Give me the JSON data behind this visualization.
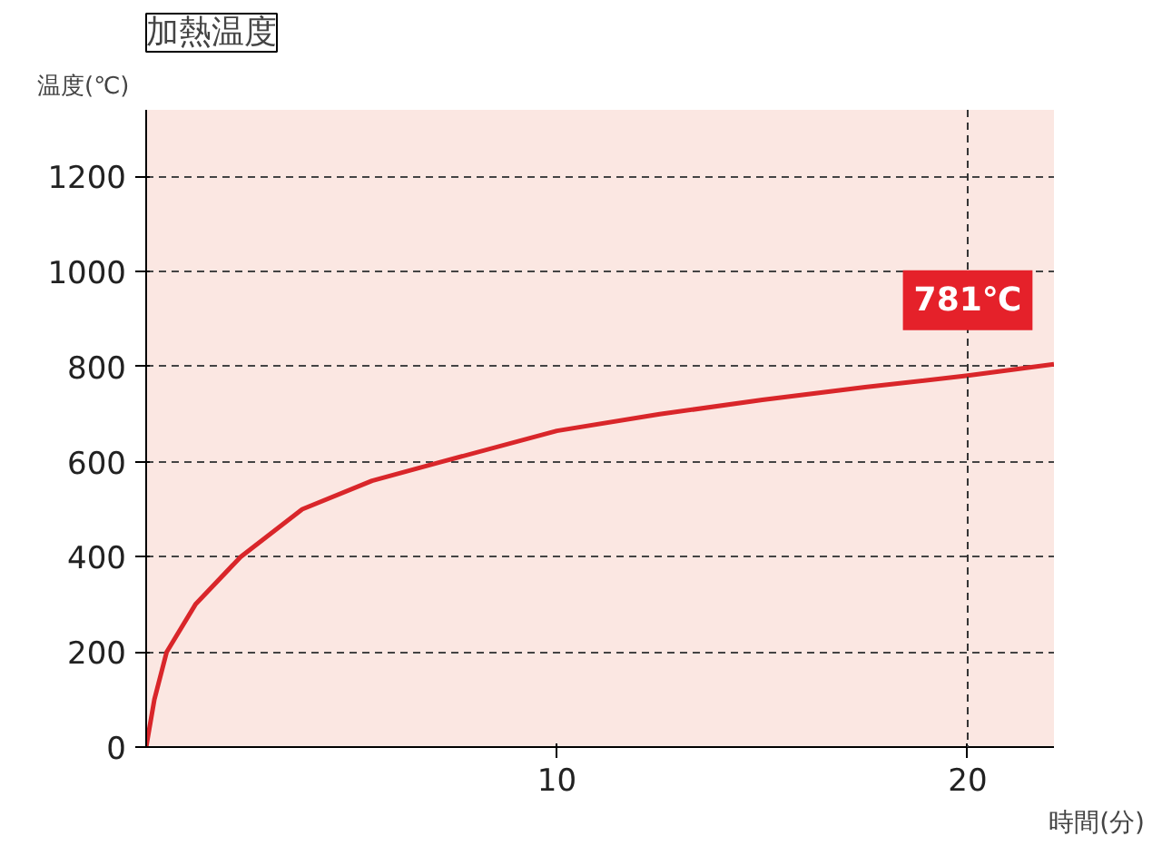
{
  "chart_data": {
    "type": "line",
    "title": "加熱温度",
    "xlabel": "時間(分)",
    "ylabel": "温度(℃)",
    "x": [
      0,
      0.2,
      0.5,
      1.2,
      2.3,
      3.8,
      5.5,
      7.2,
      10,
      12.5,
      15,
      17.5,
      20,
      22.1
    ],
    "series": [
      {
        "color": "#d9262a",
        "values": [
          0,
          100,
          200,
          300,
          400,
          500,
          560,
          600,
          665,
          700,
          730,
          757,
          781,
          805
        ]
      }
    ],
    "xlim": [
      0,
      22.1
    ],
    "ylim": [
      0,
      1340
    ],
    "xticks": [
      10,
      20
    ],
    "yticks": [
      0,
      200,
      400,
      600,
      800,
      1000,
      1200
    ],
    "grid": "y",
    "marker": "none",
    "line_style": "solid",
    "ref_lines": [
      {
        "axis": "x",
        "value": 20,
        "line_style": "dashed",
        "color": "#333333"
      }
    ],
    "annotations": [
      {
        "text": "781℃",
        "x": 20,
        "y": 781
      }
    ]
  }
}
